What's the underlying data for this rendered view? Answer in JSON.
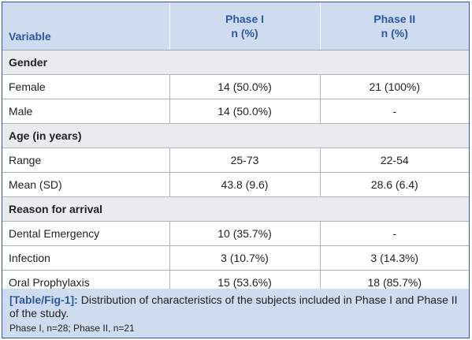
{
  "table": {
    "headers": {
      "variable": "Variable",
      "phase1_line1": "Phase I",
      "phase1_line2": "n (%)",
      "phase2_line1": "Phase II",
      "phase2_line2": "n (%)"
    },
    "sections": [
      {
        "title": "Gender",
        "rows": [
          {
            "label": "Female",
            "phase1": "14 (50.0%)",
            "phase2": "21 (100%)"
          },
          {
            "label": "Male",
            "phase1": "14 (50.0%)",
            "phase2": "-"
          }
        ]
      },
      {
        "title": "Age (in years)",
        "rows": [
          {
            "label": "Range",
            "phase1": "25-73",
            "phase2": "22-54"
          },
          {
            "label": "Mean (SD)",
            "phase1": "43.8 (9.6)",
            "phase2": "28.6 (6.4)"
          }
        ]
      },
      {
        "title": "Reason for arrival",
        "rows": [
          {
            "label": "Dental Emergency",
            "phase1": "10 (35.7%)",
            "phase2": "-"
          },
          {
            "label": "Infection",
            "phase1": "3 (10.7%)",
            "phase2": "3 (14.3%)"
          },
          {
            "label": "Oral Prophylaxis",
            "phase1": "15 (53.6%)",
            "phase2": "18 (85.7%)"
          }
        ]
      }
    ]
  },
  "caption": {
    "tag": "[Table/Fig-1]:",
    "text": " Distribution of characteristics of the subjects included in Phase I and Phase II of the study.",
    "note": "Phase I, n=28; Phase II, n=21"
  },
  "colors": {
    "accent": "#2c5aa0",
    "header_bg": "#cfdbee",
    "section_bg": "#e9ebee"
  }
}
